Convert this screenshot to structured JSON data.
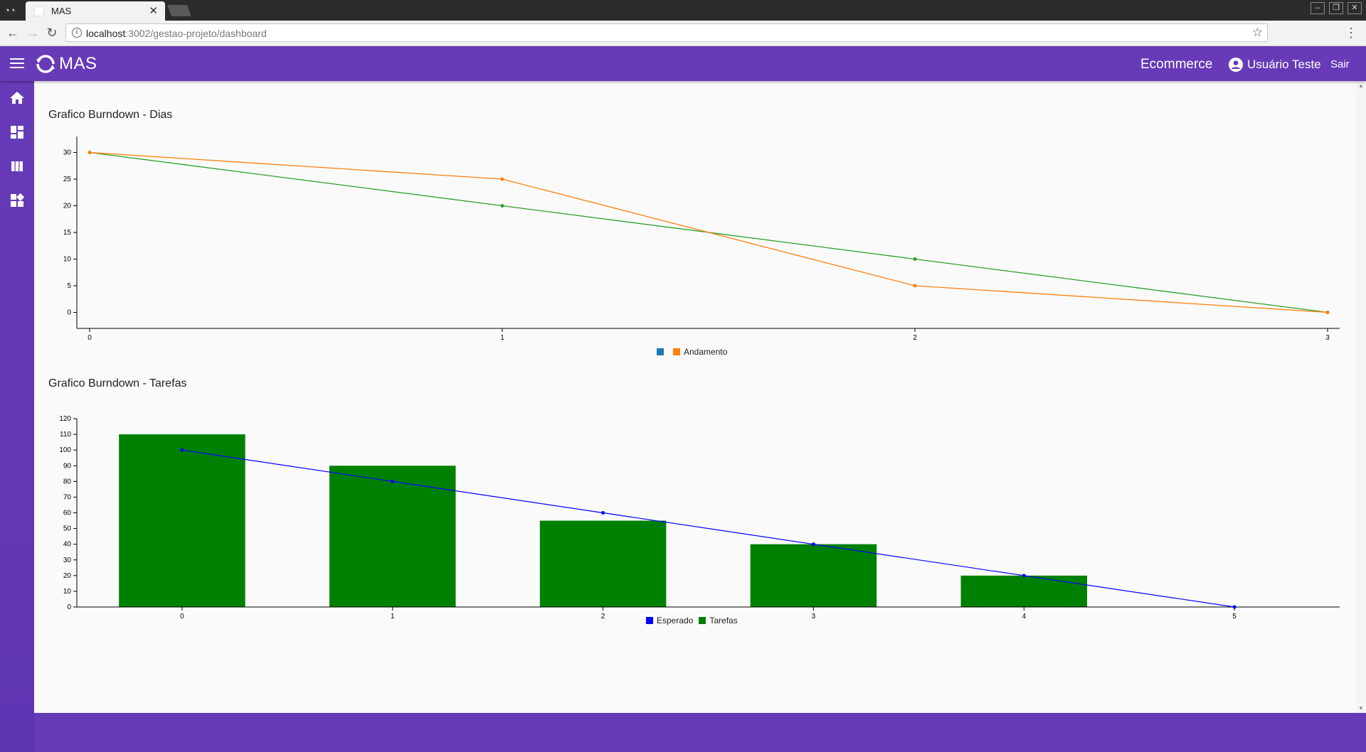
{
  "browser": {
    "tab_title": "MAS",
    "url_host": "localhost",
    "url_path": ":3002/gestao-projeto/dashboard"
  },
  "app": {
    "logo_text": "MAS",
    "project_name": "Ecommerce",
    "user_name": "Usuário Teste",
    "logout_label": "Sair",
    "accent": "#673ab7"
  },
  "sidebar": {
    "items": [
      {
        "icon": "home-icon"
      },
      {
        "icon": "dashboard-icon"
      },
      {
        "icon": "view-column-icon"
      },
      {
        "icon": "widgets-icon"
      }
    ]
  },
  "chart_dias_title": "Grafico Burndown - Dias",
  "chart_tarefas_title": "Grafico Burndown - Tarefas",
  "chart_data": [
    {
      "type": "line",
      "title": "Grafico Burndown - Dias",
      "x": [
        0,
        1,
        2,
        3
      ],
      "xlim": [
        0,
        3
      ],
      "ylim": [
        -3,
        33
      ],
      "yticks": [
        0,
        5,
        10,
        15,
        20,
        25,
        30
      ],
      "series": [
        {
          "color": "#2ca02c",
          "values": [
            30,
            20,
            10,
            0
          ]
        },
        {
          "name": "Andamento",
          "color": "#ff7f0e",
          "values": [
            30,
            25,
            5,
            0
          ]
        }
      ],
      "legend": [
        {
          "name": "",
          "color": "#1f77b4"
        },
        {
          "name": "Andamento",
          "color": "#ff7f0e"
        }
      ]
    },
    {
      "type": "bar",
      "title": "Grafico Burndown - Tarefas",
      "categories": [
        0,
        1,
        2,
        3,
        4,
        5
      ],
      "ylim": [
        0,
        120
      ],
      "yticks": [
        0,
        10,
        20,
        30,
        40,
        50,
        60,
        70,
        80,
        90,
        100,
        110,
        120
      ],
      "series": [
        {
          "name": "Tarefas",
          "type": "bar",
          "color": "#008000",
          "values": [
            110,
            90,
            55,
            40,
            20,
            null
          ]
        },
        {
          "name": "Esperado",
          "type": "line",
          "color": "#0000ff",
          "values": [
            100,
            80,
            60,
            40,
            20,
            0
          ]
        }
      ],
      "legend": [
        {
          "name": "Esperado",
          "color": "#0000ff"
        },
        {
          "name": "Tarefas",
          "color": "#008000"
        }
      ]
    }
  ]
}
